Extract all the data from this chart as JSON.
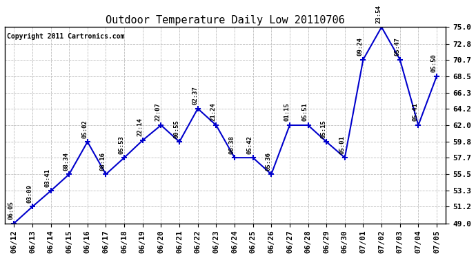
{
  "title": "Outdoor Temperature Daily Low 20110706",
  "copyright": "Copyright 2011 Cartronics.com",
  "x_labels": [
    "06/12",
    "06/13",
    "06/14",
    "06/15",
    "06/16",
    "06/17",
    "06/18",
    "06/19",
    "06/20",
    "06/21",
    "06/22",
    "06/23",
    "06/24",
    "06/25",
    "06/26",
    "06/27",
    "06/28",
    "06/29",
    "06/30",
    "07/01",
    "07/02",
    "07/03",
    "07/04",
    "07/05"
  ],
  "y_values": [
    49.0,
    51.2,
    53.3,
    55.5,
    59.8,
    55.5,
    57.7,
    60.0,
    62.0,
    59.8,
    64.2,
    62.0,
    57.7,
    57.7,
    55.5,
    62.0,
    62.0,
    59.8,
    57.7,
    70.7,
    75.0,
    70.7,
    62.0,
    68.5
  ],
  "point_labels": [
    "06:05",
    "03:09",
    "03:41",
    "08:34",
    "05:02",
    "08:16",
    "05:53",
    "22:14",
    "22:07",
    "00:55",
    "02:37",
    "21:24",
    "06:38",
    "05:42",
    "05:36",
    "01:15",
    "05:51",
    "05:15",
    "05:01",
    "09:24",
    "23:54",
    "05:47",
    "05:41",
    "05:50"
  ],
  "ylim": [
    49.0,
    75.0
  ],
  "yticks": [
    49.0,
    51.2,
    53.3,
    55.5,
    57.7,
    59.8,
    62.0,
    64.2,
    66.3,
    68.5,
    70.7,
    72.8,
    75.0
  ],
  "line_color": "#0000cc",
  "marker_color": "#0000cc",
  "background_color": "#ffffff",
  "grid_color": "#bbbbbb",
  "title_fontsize": 11,
  "copyright_fontsize": 7,
  "label_fontsize": 6.5,
  "tick_fontsize": 8
}
